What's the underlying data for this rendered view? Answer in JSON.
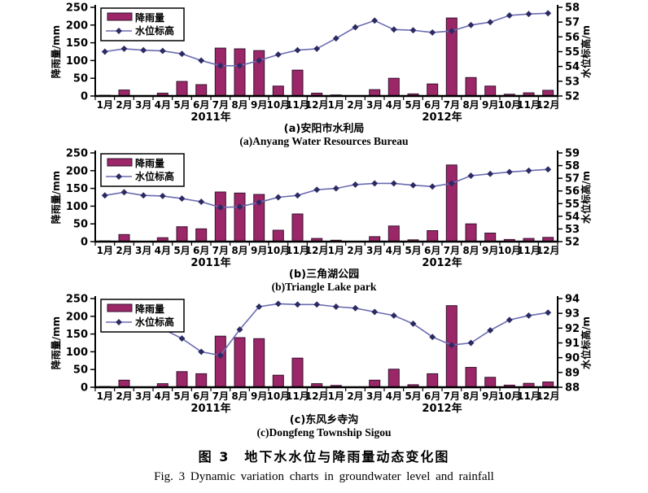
{
  "figure": {
    "caption_zh": "图 3　地下水水位与降雨量动态变化图",
    "caption_en": "Fig. 3 Dynamic variation charts in groundwater level and rainfall"
  },
  "legend": {
    "rainfall_label": "降雨量",
    "level_label": "水位标高"
  },
  "axes_labels": {
    "left_label": "降雨量/mm",
    "right_label": "水位标高/m"
  },
  "colors": {
    "bar_fill": "#9b2768",
    "bar_border": "#35102e",
    "line": "#6b6bb2",
    "marker": "#2b2b63",
    "axis": "#000000",
    "legend_border": "#000000",
    "legend_bg": "#ffffff"
  },
  "chart_data": [
    {
      "type": "bar+line",
      "caption_zh": "(a)安阳市水利局",
      "caption_en": "(a)Anyang Water Resources Bureau",
      "categories": [
        "1月",
        "2月",
        "3月",
        "4月",
        "5月",
        "6月",
        "7月",
        "8月",
        "9月",
        "10月",
        "11月",
        "12月",
        "1月",
        "2月",
        "3月",
        "4月",
        "5月",
        "6月",
        "7月",
        "8月",
        "9月",
        "10月",
        "11月",
        "12月"
      ],
      "year_labels": [
        "2011年",
        "2012年"
      ],
      "left_axis": {
        "label": "降雨量/mm",
        "min": 0,
        "max": 250,
        "step": 50
      },
      "right_axis": {
        "label": "水位标高/m",
        "min": 52,
        "max": 58,
        "step": 1
      },
      "series": [
        {
          "name": "降雨量",
          "type": "bar",
          "axis": "left",
          "values": [
            2,
            17,
            0,
            8,
            41,
            32,
            135,
            133,
            128,
            28,
            73,
            8,
            3,
            0,
            18,
            50,
            6,
            34,
            220,
            52,
            28,
            5,
            9,
            16
          ]
        },
        {
          "name": "水位标高",
          "type": "line",
          "axis": "right",
          "values": [
            55.0,
            55.2,
            55.1,
            55.05,
            54.85,
            54.4,
            54.05,
            54.05,
            54.4,
            54.8,
            55.1,
            55.2,
            55.9,
            56.65,
            57.1,
            56.5,
            56.45,
            56.3,
            56.4,
            56.8,
            57.0,
            57.45,
            57.55,
            57.6
          ]
        }
      ]
    },
    {
      "type": "bar+line",
      "caption_zh": "(b)三角湖公园",
      "caption_en": "(b)Triangle Lake park",
      "categories": [
        "1月",
        "2月",
        "3月",
        "4月",
        "5月",
        "6月",
        "7月",
        "8月",
        "9月",
        "10月",
        "11月",
        "12月",
        "1月",
        "2月",
        "3月",
        "4月",
        "5月",
        "6月",
        "7月",
        "8月",
        "9月",
        "10月",
        "11月",
        "12月"
      ],
      "year_labels": [
        "2011年",
        "2012年"
      ],
      "left_axis": {
        "label": "降雨量/mm",
        "min": 0,
        "max": 250,
        "step": 50
      },
      "right_axis": {
        "label": "水位标高/m",
        "min": 52,
        "max": 59,
        "step": 1
      },
      "series": [
        {
          "name": "降雨量",
          "type": "bar",
          "axis": "left",
          "values": [
            2,
            20,
            0,
            11,
            42,
            36,
            140,
            137,
            133,
            32,
            78,
            9,
            4,
            0,
            14,
            44,
            5,
            31,
            216,
            50,
            24,
            6,
            9,
            12
          ]
        },
        {
          "name": "水位标高",
          "type": "line",
          "axis": "right",
          "values": [
            55.65,
            55.9,
            55.65,
            55.6,
            55.4,
            55.15,
            54.7,
            54.75,
            55.1,
            55.5,
            55.65,
            56.1,
            56.2,
            56.5,
            56.6,
            56.6,
            56.45,
            56.35,
            56.6,
            57.2,
            57.35,
            57.5,
            57.6,
            57.7
          ]
        }
      ]
    },
    {
      "type": "bar+line",
      "caption_zh": "(c)东风乡寺沟",
      "caption_en": "(c)Dongfeng Township Sigou",
      "categories": [
        "1月",
        "2月",
        "3月",
        "4月",
        "5月",
        "6月",
        "7月",
        "8月",
        "9月",
        "10月",
        "11月",
        "12月",
        "1月",
        "2月",
        "3月",
        "4月",
        "5月",
        "6月",
        "7月",
        "8月",
        "9月",
        "10月",
        "11月",
        "12月"
      ],
      "year_labels": [
        "2011年",
        "2012年"
      ],
      "left_axis": {
        "label": "降雨量/mm",
        "min": 0,
        "max": 250,
        "step": 50
      },
      "right_axis": {
        "label": "水位标高/m",
        "min": 88,
        "max": 94,
        "step": 1
      },
      "series": [
        {
          "name": "降雨量",
          "type": "bar",
          "axis": "left",
          "values": [
            2,
            20,
            0,
            10,
            44,
            38,
            144,
            140,
            137,
            34,
            82,
            10,
            5,
            0,
            20,
            51,
            7,
            38,
            230,
            56,
            28,
            6,
            11,
            15
          ]
        },
        {
          "name": "水位标高",
          "type": "line",
          "axis": "right",
          "values": [
            92.65,
            92.6,
            92.45,
            91.95,
            91.3,
            90.4,
            90.15,
            91.9,
            93.45,
            93.65,
            93.6,
            93.6,
            93.45,
            93.35,
            93.1,
            92.85,
            92.3,
            91.4,
            90.85,
            91.0,
            91.85,
            92.55,
            92.85,
            93.05
          ]
        }
      ]
    }
  ]
}
